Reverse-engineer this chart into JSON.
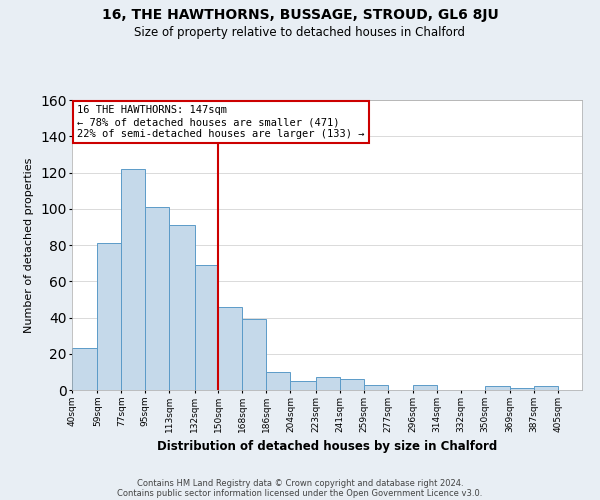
{
  "title": "16, THE HAWTHORNS, BUSSAGE, STROUD, GL6 8JU",
  "subtitle": "Size of property relative to detached houses in Chalford",
  "xlabel": "Distribution of detached houses by size in Chalford",
  "ylabel": "Number of detached properties",
  "bar_left_edges": [
    40,
    59,
    77,
    95,
    113,
    132,
    150,
    168,
    186,
    204,
    223,
    241,
    259,
    277,
    296,
    314,
    332,
    350,
    369,
    387
  ],
  "bar_heights": [
    23,
    81,
    122,
    101,
    91,
    69,
    46,
    39,
    10,
    5,
    7,
    6,
    3,
    0,
    3,
    0,
    0,
    2,
    1,
    2
  ],
  "bar_widths": [
    19,
    18,
    18,
    18,
    19,
    18,
    18,
    18,
    18,
    19,
    18,
    18,
    18,
    19,
    18,
    18,
    18,
    19,
    18,
    18
  ],
  "tick_labels": [
    "40sqm",
    "59sqm",
    "77sqm",
    "95sqm",
    "113sqm",
    "132sqm",
    "150sqm",
    "168sqm",
    "186sqm",
    "204sqm",
    "223sqm",
    "241sqm",
    "259sqm",
    "277sqm",
    "296sqm",
    "314sqm",
    "332sqm",
    "350sqm",
    "369sqm",
    "387sqm",
    "405sqm"
  ],
  "tick_positions": [
    40,
    59,
    77,
    95,
    113,
    132,
    150,
    168,
    186,
    204,
    223,
    241,
    259,
    277,
    296,
    314,
    332,
    350,
    369,
    387,
    405
  ],
  "vline_x": 150,
  "vline_color": "#cc0000",
  "bar_facecolor": "#c5d9ea",
  "bar_edgecolor": "#5b9bc8",
  "ylim": [
    0,
    160
  ],
  "yticks": [
    0,
    20,
    40,
    60,
    80,
    100,
    120,
    140,
    160
  ],
  "annotation_title": "16 THE HAWTHORNS: 147sqm",
  "annotation_line1": "← 78% of detached houses are smaller (471)",
  "annotation_line2": "22% of semi-detached houses are larger (133) →",
  "footer1": "Contains HM Land Registry data © Crown copyright and database right 2024.",
  "footer2": "Contains public sector information licensed under the Open Government Licence v3.0.",
  "background_color": "#e8eef4",
  "plot_background": "#ffffff"
}
